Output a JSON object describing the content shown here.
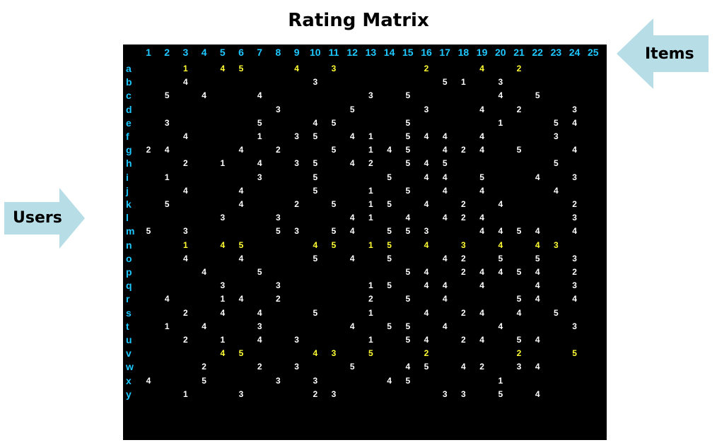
{
  "title": "Rating Matrix",
  "labels": {
    "items": "Items",
    "users": "Users"
  },
  "colors": {
    "background": "#000000",
    "header": "#1ec8ff",
    "rating": "#ffffff",
    "highlight": "#ffff33",
    "arrow": "#b7dde6"
  },
  "matrix": {
    "columns": [
      "1",
      "2",
      "3",
      "4",
      "5",
      "6",
      "7",
      "8",
      "9",
      "10",
      "11",
      "12",
      "13",
      "14",
      "15",
      "16",
      "17",
      "18",
      "19",
      "20",
      "21",
      "22",
      "23",
      "24",
      "25"
    ],
    "rows": [
      "a",
      "b",
      "c",
      "d",
      "e",
      "f",
      "g",
      "h",
      "i",
      "j",
      "k",
      "l",
      "m",
      "n",
      "o",
      "p",
      "q",
      "r",
      "s",
      "t",
      "u",
      "v",
      "w",
      "x",
      "y"
    ],
    "highlight_rows": [
      "a",
      "n",
      "v"
    ],
    "ratings": {
      "a": [
        [
          3,
          1
        ],
        [
          5,
          4
        ],
        [
          6,
          5
        ],
        [
          9,
          4
        ],
        [
          11,
          3
        ],
        [
          16,
          2
        ],
        [
          19,
          4
        ],
        [
          21,
          2
        ]
      ],
      "b": [
        [
          3,
          4
        ],
        [
          10,
          3
        ],
        [
          17,
          5
        ],
        [
          18,
          1
        ],
        [
          20,
          3
        ]
      ],
      "c": [
        [
          2,
          5
        ],
        [
          4,
          4
        ],
        [
          7,
          4
        ],
        [
          13,
          3
        ],
        [
          15,
          5
        ],
        [
          20,
          4
        ],
        [
          22,
          5
        ]
      ],
      "d": [
        [
          8,
          3
        ],
        [
          12,
          5
        ],
        [
          16,
          3
        ],
        [
          19,
          4
        ],
        [
          21,
          2
        ],
        [
          24,
          3
        ]
      ],
      "e": [
        [
          2,
          3
        ],
        [
          7,
          5
        ],
        [
          10,
          4
        ],
        [
          11,
          5
        ],
        [
          15,
          5
        ],
        [
          20,
          1
        ],
        [
          23,
          5
        ],
        [
          24,
          4
        ]
      ],
      "f": [
        [
          3,
          4
        ],
        [
          7,
          1
        ],
        [
          9,
          3
        ],
        [
          10,
          5
        ],
        [
          12,
          4
        ],
        [
          13,
          1
        ],
        [
          15,
          5
        ],
        [
          16,
          4
        ],
        [
          17,
          4
        ],
        [
          19,
          4
        ],
        [
          23,
          3
        ]
      ],
      "g": [
        [
          1,
          2
        ],
        [
          2,
          4
        ],
        [
          6,
          4
        ],
        [
          8,
          2
        ],
        [
          11,
          5
        ],
        [
          13,
          1
        ],
        [
          14,
          4
        ],
        [
          15,
          5
        ],
        [
          17,
          4
        ],
        [
          18,
          2
        ],
        [
          19,
          4
        ],
        [
          21,
          5
        ],
        [
          24,
          4
        ]
      ],
      "h": [
        [
          3,
          2
        ],
        [
          5,
          1
        ],
        [
          7,
          4
        ],
        [
          9,
          3
        ],
        [
          10,
          5
        ],
        [
          12,
          4
        ],
        [
          13,
          2
        ],
        [
          15,
          5
        ],
        [
          16,
          4
        ],
        [
          17,
          5
        ],
        [
          23,
          5
        ]
      ],
      "i": [
        [
          2,
          1
        ],
        [
          7,
          3
        ],
        [
          10,
          5
        ],
        [
          14,
          5
        ],
        [
          16,
          4
        ],
        [
          17,
          4
        ],
        [
          19,
          5
        ],
        [
          22,
          4
        ],
        [
          24,
          3
        ]
      ],
      "j": [
        [
          3,
          4
        ],
        [
          6,
          4
        ],
        [
          10,
          5
        ],
        [
          13,
          1
        ],
        [
          15,
          5
        ],
        [
          17,
          4
        ],
        [
          19,
          4
        ],
        [
          23,
          4
        ]
      ],
      "k": [
        [
          2,
          5
        ],
        [
          6,
          4
        ],
        [
          9,
          2
        ],
        [
          11,
          5
        ],
        [
          13,
          1
        ],
        [
          14,
          5
        ],
        [
          16,
          4
        ],
        [
          18,
          2
        ],
        [
          20,
          4
        ],
        [
          24,
          2
        ]
      ],
      "l": [
        [
          5,
          3
        ],
        [
          8,
          3
        ],
        [
          12,
          4
        ],
        [
          13,
          1
        ],
        [
          15,
          4
        ],
        [
          17,
          4
        ],
        [
          18,
          2
        ],
        [
          19,
          4
        ],
        [
          24,
          3
        ]
      ],
      "m": [
        [
          1,
          5
        ],
        [
          3,
          3
        ],
        [
          8,
          5
        ],
        [
          9,
          3
        ],
        [
          11,
          5
        ],
        [
          12,
          4
        ],
        [
          14,
          5
        ],
        [
          15,
          5
        ],
        [
          16,
          3
        ],
        [
          19,
          4
        ],
        [
          20,
          4
        ],
        [
          21,
          5
        ],
        [
          22,
          4
        ],
        [
          24,
          4
        ]
      ],
      "n": [
        [
          3,
          1
        ],
        [
          5,
          4
        ],
        [
          6,
          5
        ],
        [
          10,
          4
        ],
        [
          11,
          5
        ],
        [
          13,
          1
        ],
        [
          14,
          5
        ],
        [
          16,
          4
        ],
        [
          18,
          3
        ],
        [
          20,
          4
        ],
        [
          22,
          4
        ],
        [
          23,
          3
        ]
      ],
      "o": [
        [
          3,
          4
        ],
        [
          6,
          4
        ],
        [
          10,
          5
        ],
        [
          12,
          4
        ],
        [
          14,
          5
        ],
        [
          17,
          4
        ],
        [
          18,
          2
        ],
        [
          20,
          5
        ],
        [
          22,
          5
        ],
        [
          24,
          3
        ]
      ],
      "p": [
        [
          4,
          4
        ],
        [
          7,
          5
        ],
        [
          15,
          5
        ],
        [
          16,
          4
        ],
        [
          18,
          2
        ],
        [
          19,
          4
        ],
        [
          20,
          4
        ],
        [
          21,
          5
        ],
        [
          22,
          4
        ],
        [
          24,
          2
        ]
      ],
      "q": [
        [
          5,
          3
        ],
        [
          8,
          3
        ],
        [
          13,
          1
        ],
        [
          14,
          5
        ],
        [
          16,
          4
        ],
        [
          17,
          4
        ],
        [
          19,
          4
        ],
        [
          22,
          4
        ],
        [
          24,
          3
        ]
      ],
      "r": [
        [
          2,
          4
        ],
        [
          5,
          1
        ],
        [
          6,
          4
        ],
        [
          8,
          2
        ],
        [
          13,
          2
        ],
        [
          15,
          5
        ],
        [
          17,
          4
        ],
        [
          21,
          5
        ],
        [
          22,
          4
        ],
        [
          24,
          4
        ]
      ],
      "s": [
        [
          3,
          2
        ],
        [
          5,
          4
        ],
        [
          7,
          4
        ],
        [
          10,
          5
        ],
        [
          13,
          1
        ],
        [
          16,
          4
        ],
        [
          18,
          2
        ],
        [
          19,
          4
        ],
        [
          21,
          4
        ],
        [
          23,
          5
        ]
      ],
      "t": [
        [
          2,
          1
        ],
        [
          4,
          4
        ],
        [
          7,
          3
        ],
        [
          12,
          4
        ],
        [
          14,
          5
        ],
        [
          15,
          5
        ],
        [
          17,
          4
        ],
        [
          20,
          4
        ],
        [
          24,
          3
        ]
      ],
      "u": [
        [
          3,
          2
        ],
        [
          5,
          1
        ],
        [
          7,
          4
        ],
        [
          9,
          3
        ],
        [
          13,
          1
        ],
        [
          15,
          5
        ],
        [
          16,
          4
        ],
        [
          18,
          2
        ],
        [
          19,
          4
        ],
        [
          21,
          5
        ],
        [
          22,
          4
        ]
      ],
      "v": [
        [
          5,
          4
        ],
        [
          6,
          5
        ],
        [
          10,
          4
        ],
        [
          11,
          3
        ],
        [
          13,
          5
        ],
        [
          16,
          2
        ],
        [
          21,
          2
        ],
        [
          24,
          5
        ]
      ],
      "w": [
        [
          4,
          2
        ],
        [
          7,
          2
        ],
        [
          9,
          3
        ],
        [
          12,
          5
        ],
        [
          15,
          4
        ],
        [
          16,
          5
        ],
        [
          18,
          4
        ],
        [
          19,
          2
        ],
        [
          21,
          3
        ],
        [
          22,
          4
        ]
      ],
      "x": [
        [
          1,
          4
        ],
        [
          4,
          5
        ],
        [
          8,
          3
        ],
        [
          10,
          3
        ],
        [
          14,
          4
        ],
        [
          15,
          5
        ],
        [
          20,
          1
        ]
      ],
      "y": [
        [
          3,
          1
        ],
        [
          6,
          3
        ],
        [
          10,
          2
        ],
        [
          11,
          3
        ],
        [
          17,
          3
        ],
        [
          18,
          3
        ],
        [
          20,
          5
        ],
        [
          22,
          4
        ]
      ]
    }
  }
}
